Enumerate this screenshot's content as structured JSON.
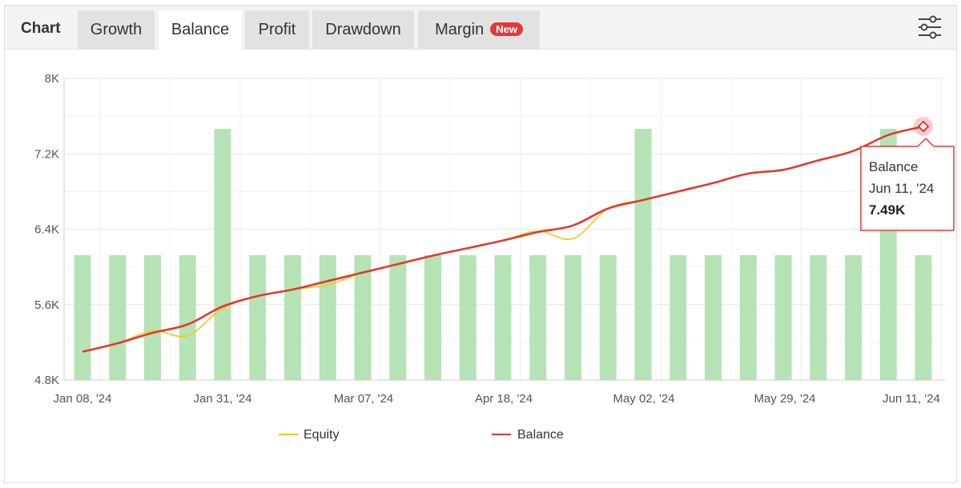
{
  "tabs": {
    "title": "Chart",
    "items": [
      {
        "label": "Growth",
        "active": false
      },
      {
        "label": "Balance",
        "active": true
      },
      {
        "label": "Profit",
        "active": false
      },
      {
        "label": "Drawdown",
        "active": false
      },
      {
        "label": "Margin",
        "active": false,
        "badge": "New"
      }
    ]
  },
  "icons": {
    "settings": "sliders-icon"
  },
  "colors": {
    "equity": "#f5c518",
    "balance": "#e03a2f",
    "bars": "#b5e3b5",
    "badge": "#e03a3a"
  },
  "tooltip": {
    "series": "Balance",
    "date": "Jun 11, '24",
    "value": "7.49K"
  },
  "chart_data": {
    "type": "line",
    "ylim": [
      4800,
      8000
    ],
    "y_ticks": [
      4800,
      5600,
      6400,
      7200,
      8000
    ],
    "y_tick_labels": [
      "4.8K",
      "5.6K",
      "6.4K",
      "7.2K",
      "8K"
    ],
    "x_tick_labels": [
      "Jan 08, '24",
      "Jan 31, '24",
      "Mar 07, '24",
      "Apr 18, '24",
      "May 02, '24",
      "May 29, '24",
      "Jun 11, '24"
    ],
    "legend": [
      "Equity",
      "Balance"
    ],
    "legend_position": "bottom-center",
    "grid": true,
    "bars": {
      "count": 25,
      "levels": [
        1,
        1,
        1,
        1,
        2,
        1,
        1,
        1,
        1,
        1,
        1,
        1,
        1,
        1,
        1,
        1,
        2,
        1,
        1,
        1,
        1,
        1,
        1,
        2,
        1
      ]
    },
    "series": [
      {
        "name": "Balance",
        "values": [
          5100,
          5190,
          5300,
          5390,
          5580,
          5690,
          5760,
          5850,
          5940,
          6030,
          6120,
          6200,
          6280,
          6370,
          6440,
          6620,
          6710,
          6800,
          6890,
          6990,
          7030,
          7130,
          7230,
          7400,
          7490
        ]
      },
      {
        "name": "Equity",
        "values": [
          5100,
          5190,
          5320,
          5270,
          5560,
          5690,
          5760,
          5810,
          5940,
          6030,
          6120,
          6200,
          6280,
          6380,
          6300,
          6620,
          6710,
          6800,
          6890,
          6990,
          7030,
          7130,
          7230,
          7400,
          7490
        ]
      }
    ]
  }
}
